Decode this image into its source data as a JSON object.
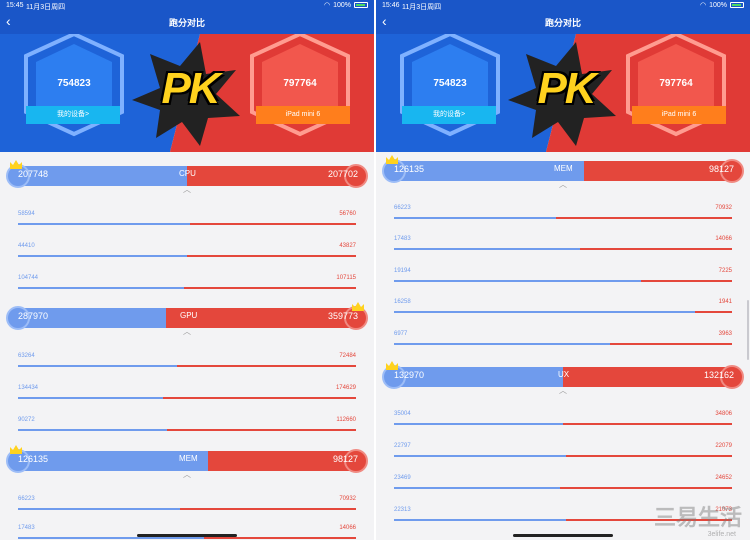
{
  "nav": {
    "title": "跑分对比",
    "back_icon": "chevron-left-icon"
  },
  "devices": {
    "mine_score": "754823",
    "mine_label": "我的设备>",
    "other_score": "797764",
    "other_label": "iPad mini 6"
  },
  "banner": {
    "pk": "PK"
  },
  "left": {
    "status": {
      "time": "15:45",
      "date": "11月3日周四",
      "battery": "100%"
    },
    "cpu": {
      "name": "CPU",
      "left": "207748",
      "right": "207702"
    },
    "cpu_rows": [
      {
        "left": "58594",
        "right": "56760"
      },
      {
        "left": "44410",
        "right": "43827"
      },
      {
        "left": "104744",
        "right": "107115"
      }
    ],
    "gpu": {
      "name": "GPU",
      "left": "287970",
      "right": "359773"
    },
    "gpu_rows": [
      {
        "left": "63264",
        "right": "72484"
      },
      {
        "left": "134434",
        "right": "174629"
      },
      {
        "left": "90272",
        "right": "112660"
      }
    ],
    "mem": {
      "name": "MEM",
      "left": "126135",
      "right": "98127"
    },
    "mem_rows": [
      {
        "left": "66223",
        "right": "70932"
      },
      {
        "left": "17483",
        "right": "14066"
      }
    ]
  },
  "right": {
    "status": {
      "time": "15:46",
      "date": "11月3日周四",
      "battery": "100%"
    },
    "mem": {
      "name": "MEM",
      "left": "126135",
      "right": "98127"
    },
    "mem_rows": [
      {
        "left": "66223",
        "right": "70932"
      },
      {
        "left": "17483",
        "right": "14066"
      },
      {
        "left": "19194",
        "right": "7225"
      },
      {
        "left": "16258",
        "right": "1941"
      },
      {
        "left": "6977",
        "right": "3963"
      }
    ],
    "ux": {
      "name": "UX",
      "left": "132970",
      "right": "132162"
    },
    "ux_rows": [
      {
        "left": "35004",
        "right": "34806"
      },
      {
        "left": "22797",
        "right": "22079"
      },
      {
        "left": "23469",
        "right": "24652"
      },
      {
        "left": "22313",
        "right": "21073"
      }
    ]
  },
  "watermark": {
    "main": "三易生活",
    "sub": "3elife.net"
  },
  "colors": {
    "mine": "#6f9bed",
    "other": "#e4473c",
    "nav": "#1a56c8"
  }
}
